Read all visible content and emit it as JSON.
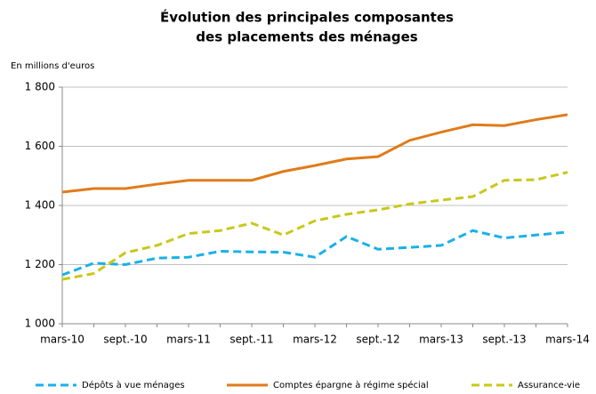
{
  "chart_data": {
    "type": "line",
    "title": [
      "Évolution des principales composantes",
      "des placements des ménages"
    ],
    "y_label": "En millions d'euros",
    "categories": [
      "mars-10",
      null,
      "sept.-10",
      null,
      "mars-11",
      null,
      "sept.-11",
      null,
      "mars-12",
      null,
      "sept.-12",
      null,
      "mars-13",
      null,
      "sept.-13",
      null,
      "mars-14"
    ],
    "series": [
      {
        "name": "Dépôts à vue ménages",
        "color": "#1ab0e8",
        "dash": true,
        "values": [
          1165,
          1205,
          1200,
          1222,
          1225,
          1245,
          1243,
          1242,
          1225,
          1295,
          1252,
          1258,
          1265,
          1315,
          1290,
          1300,
          1310
        ]
      },
      {
        "name": "Comptes épargne  à régime spécial",
        "color": "#e07b1a",
        "dash": false,
        "values": [
          1445,
          1457,
          1457,
          1472,
          1485,
          1485,
          1485,
          1515,
          1535,
          1557,
          1565,
          1620,
          1648,
          1673,
          1670,
          1690,
          1707
        ]
      },
      {
        "name": "Assurance-vie",
        "color": "#c8c81a",
        "dash": true,
        "values": [
          1150,
          1170,
          1240,
          1265,
          1305,
          1315,
          1340,
          1300,
          1348,
          1370,
          1385,
          1405,
          1418,
          1430,
          1485,
          1487,
          1512
        ]
      }
    ],
    "ylim": [
      1000,
      1800
    ],
    "yticks": [
      {
        "value": 1000,
        "label": "1 000"
      },
      {
        "value": 1200,
        "label": "1 200"
      },
      {
        "value": 1400,
        "label": "1 400"
      },
      {
        "value": 1600,
        "label": "1 600"
      },
      {
        "value": 1800,
        "label": "1 800"
      }
    ],
    "grid": true,
    "legend": "bottom"
  }
}
